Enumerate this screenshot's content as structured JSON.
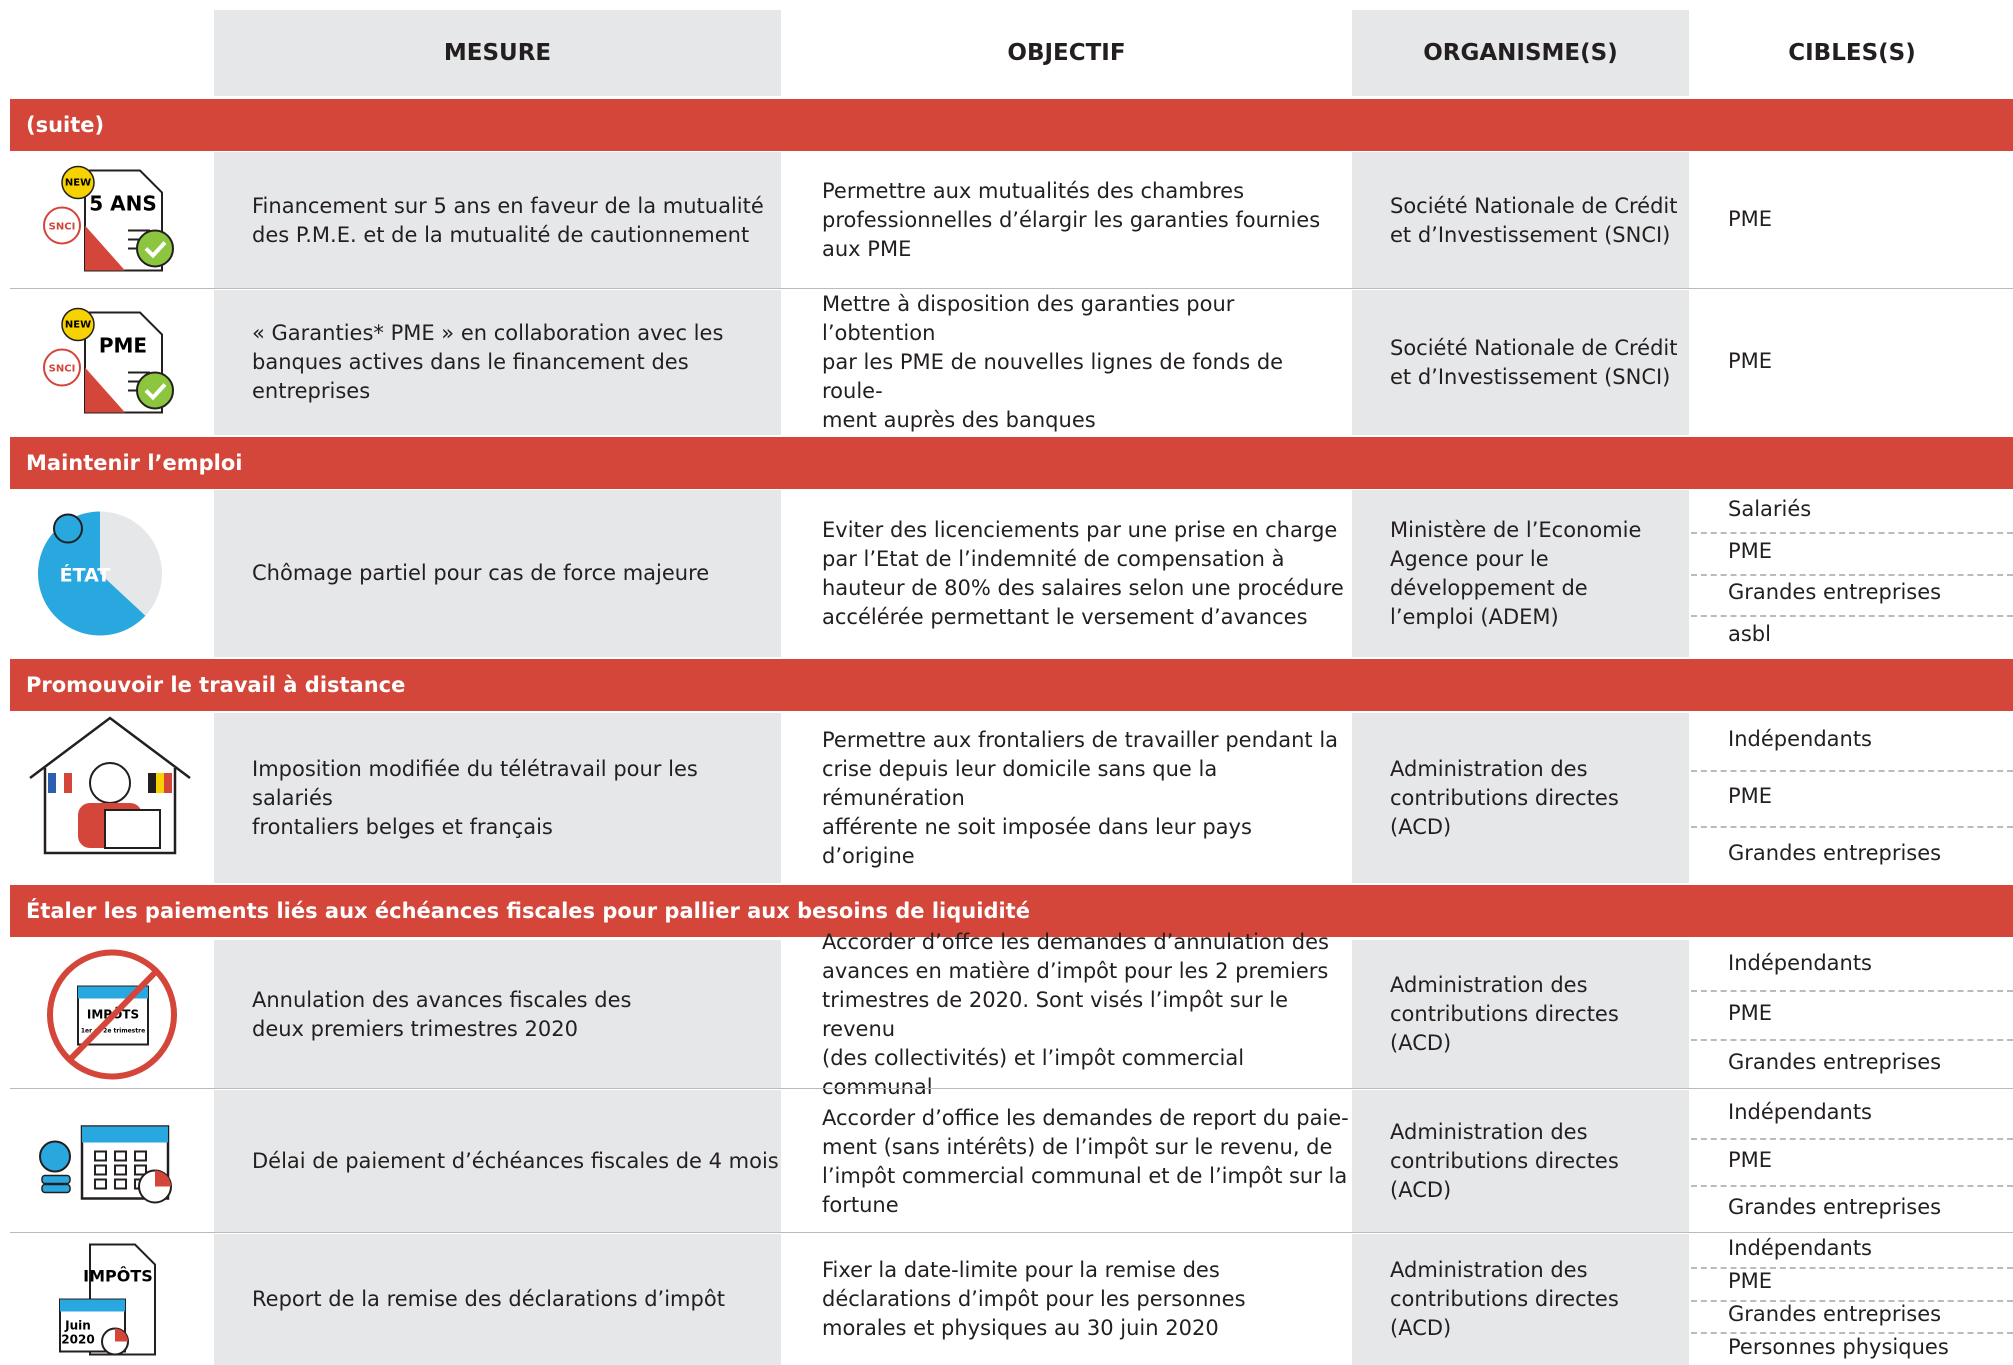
{
  "header": {
    "columns": [
      "MESURE",
      "OBJECTIF",
      "ORGANISME(S)",
      "CIBLES(S)"
    ]
  },
  "sections": [
    {
      "title": "(suite)",
      "rows": [
        {
          "icon_labels": [
            "NEW",
            "5 ANS",
            "SNCI"
          ],
          "mesure": "Financement sur 5 ans en faveur de la mutualité\ndes P.M.E. et de la mutualité de cautionnement",
          "objectif": "Permettre aux mutualités des chambres\nprofessionnelles d’élargir les garanties fournies\naux PME",
          "organisme": "Société Nationale de Crédit\net d’Investissement (SNCI)",
          "cibles": [
            "PME"
          ]
        },
        {
          "icon_labels": [
            "NEW",
            "PME",
            "SNCI"
          ],
          "mesure": "« Garanties* PME » en collaboration avec les\nbanques actives dans le financement des\nentreprises",
          "objectif": "Mettre à disposition des garanties pour l’obtention\npar les PME de nouvelles lignes de fonds de roule-\nment auprès des banques",
          "organisme": "Société Nationale de Crédit\net d’Investissement (SNCI)",
          "cibles": [
            "PME"
          ]
        }
      ]
    },
    {
      "title": "Maintenir l’emploi",
      "rows": [
        {
          "icon_labels": [
            "ÉTAT"
          ],
          "mesure": "Chômage partiel pour cas de force majeure",
          "objectif": "Eviter des licenciements par une prise en charge\npar l’Etat de l’indemnité de compensation à\nhauteur de 80% des salaires selon une procédure\naccélérée permettant le versement d’avances",
          "organisme": "Ministère de l’Economie\nAgence pour le\ndéveloppement de\nl’emploi (ADEM)",
          "cibles": [
            "Salariés",
            "PME",
            "Grandes entreprises",
            "asbl"
          ]
        }
      ]
    },
    {
      "title": "Promouvoir le travail à distance",
      "rows": [
        {
          "icon_labels": [],
          "mesure": "Imposition modifiée du télétravail pour les salariés\nfrontaliers belges et français",
          "objectif": "Permettre aux frontaliers de travailler pendant la\ncrise depuis leur domicile sans que la rémunération\nafférente ne soit imposée dans leur pays d’origine",
          "organisme": "Administration des\ncontributions directes\n(ACD)",
          "cibles": [
            "Indépendants",
            "PME",
            "Grandes entreprises"
          ]
        }
      ]
    },
    {
      "title": "Étaler les paiements liés aux échéances fiscales pour pallier aux besoins de liquidité",
      "rows": [
        {
          "icon_labels": [
            "IMPÔTS",
            "1er et 2e trimestre"
          ],
          "mesure": "Annulation des avances fiscales des\ndeux premiers trimestres 2020",
          "objectif": "Accorder d’offce les demandes d’annulation des\navances en matière d’impôt pour les 2 premiers\ntrimestres de 2020. Sont visés l’impôt sur le revenu\n(des collectivités) et l’impôt commercial communal",
          "organisme": "Administration des\ncontributions directes\n(ACD)",
          "cibles": [
            "Indépendants",
            "PME",
            "Grandes entreprises"
          ]
        },
        {
          "icon_labels": [],
          "mesure": "Délai de paiement d’échéances fiscales de 4 mois",
          "objectif": "Accorder d’office les demandes de report du paie-\nment (sans intérêts) de l’impôt sur le revenu, de\nl’impôt commercial communal et de l’impôt sur la\nfortune",
          "organisme": "Administration des\ncontributions directes\n(ACD)",
          "cibles": [
            "Indépendants",
            "PME",
            "Grandes entreprises"
          ]
        },
        {
          "icon_labels": [
            "IMPÔTS",
            "Juin",
            "2020"
          ],
          "mesure": "Report de la remise des déclarations d’impôt",
          "objectif": "Fixer la date-limite pour la remise des\ndéclarations d’impôt pour les personnes\nmorales et physiques au 30 juin 2020",
          "organisme": "Administration des\ncontributions directes\n(ACD)",
          "cibles": [
            "Indépendants",
            "PME",
            "Grandes entreprises",
            "Personnes physiques"
          ]
        }
      ]
    }
  ]
}
